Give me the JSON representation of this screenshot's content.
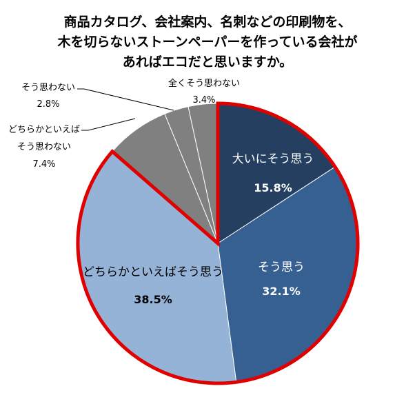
{
  "chart_data": {
    "type": "pie",
    "title_lines": [
      "商品カタログ、会社案内、名刺などの印刷物を、",
      "木を切らないストーンペーパーを作っている会社が",
      "あればエコだと思いますか。"
    ],
    "slices": [
      {
        "label": "大いにそう思う",
        "value": 15.8,
        "value_label": "15.8%",
        "color": "#243f60",
        "highlight": true
      },
      {
        "label": "そう思う",
        "value": 32.1,
        "value_label": "32.1%",
        "color": "#376092",
        "highlight": true
      },
      {
        "label": "どちらかといえばそう思う",
        "value": 38.5,
        "value_label": "38.5%",
        "color": "#95b3d7",
        "highlight": true
      },
      {
        "label_lines": [
          "どちらかといえば",
          "そう思わない"
        ],
        "value": 7.4,
        "value_label": "7.4%",
        "color": "#808080",
        "highlight": false
      },
      {
        "label": "そう思わない",
        "value": 2.8,
        "value_label": "2.8%",
        "color": "#808080",
        "highlight": false
      },
      {
        "label": "全くそう思わない",
        "value": 3.4,
        "value_label": "3.4%",
        "color": "#808080",
        "highlight": false
      }
    ],
    "start": "12 o'clock",
    "direction": "clockwise",
    "highlight_border_color": "#e00000",
    "legend": "none"
  }
}
